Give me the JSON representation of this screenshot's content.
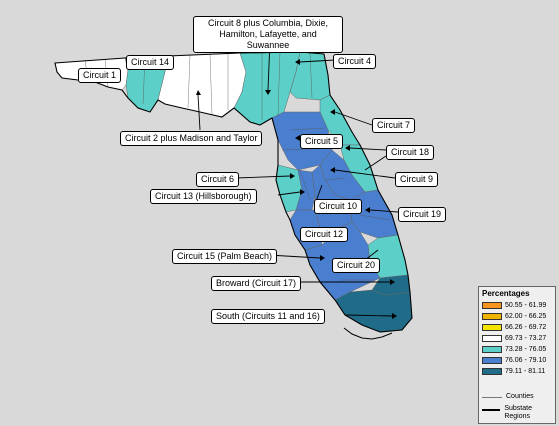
{
  "labels": {
    "circuit_1": "Circuit 1",
    "circuit_14": "Circuit 14",
    "circuit_8": "Circuit 8 plus Columbia, Dixie, Hamilton, Lafayette, and Suwannee",
    "circuit_4": "Circuit 4",
    "circuit_2": "Circuit 2 plus Madison and Taylor",
    "circuit_7": "Circuit 7",
    "circuit_5": "Circuit 5",
    "circuit_18": "Circuit 18",
    "circuit_6": "Circuit 6",
    "circuit_9": "Circuit 9",
    "circuit_13": "Circuit 13 (Hillsborough)",
    "circuit_10": "Circuit 10",
    "circuit_19": "Circuit 19",
    "circuit_12": "Circuit 12",
    "circuit_15": "Circuit 15 (Palm Beach)",
    "circuit_20": "Circuit 20",
    "circuit_17": "Broward (Circuit 17)",
    "circuit_11_16": "South (Circuits 11 and 16)"
  },
  "legend": {
    "title": "Percentages",
    "items": [
      {
        "range": "50.55 - 61.99",
        "color": "#f7941d"
      },
      {
        "range": "62.00 - 66.25",
        "color": "#f0b400"
      },
      {
        "range": "66.26 - 69.72",
        "color": "#f5e400"
      },
      {
        "range": "69.73 - 73.27",
        "color": "#ffffff"
      },
      {
        "range": "73.28 - 76.05",
        "color": "#5ccfc8"
      },
      {
        "range": "76.06 - 79.10",
        "color": "#4a7fcf"
      },
      {
        "range": "79.11 - 81.11",
        "color": "#1f6b88"
      }
    ],
    "counties_label": "Counties",
    "substate_label": "Substate Regions"
  },
  "colors": {
    "white": "#ffffff",
    "teal": "#5ccfc8",
    "blue": "#4a7fcf",
    "dark": "#1f6b88"
  }
}
